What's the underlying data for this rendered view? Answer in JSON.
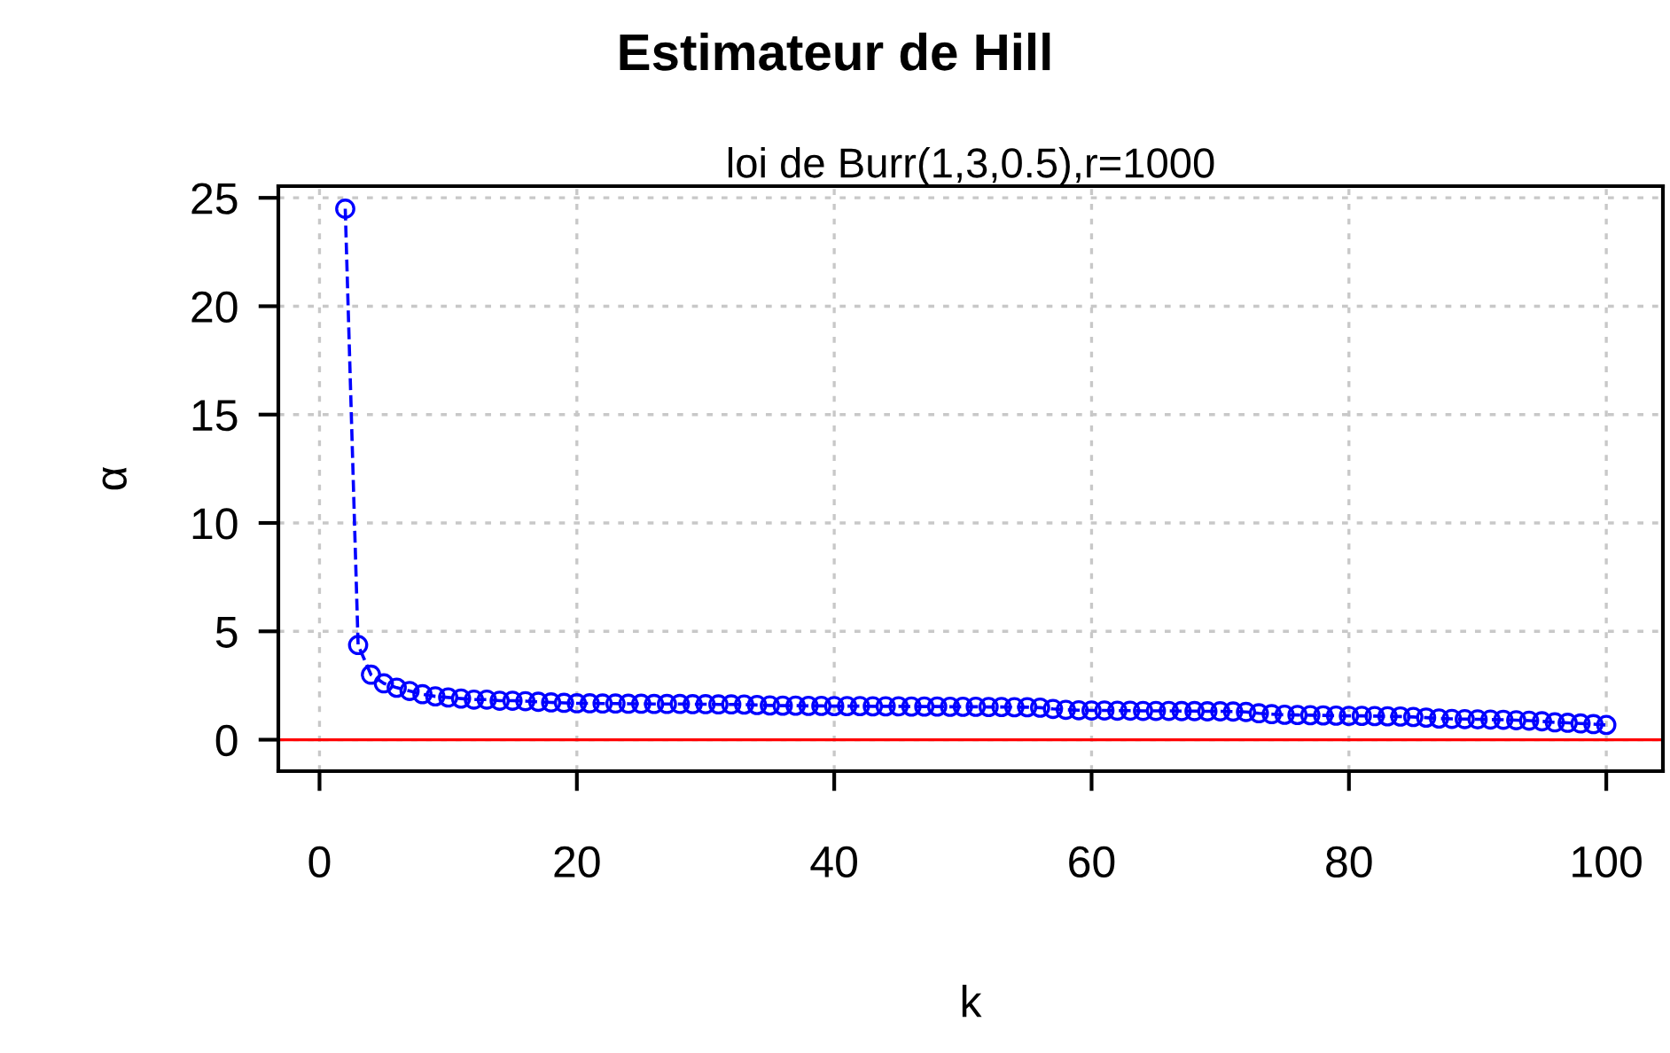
{
  "chart_data": {
    "type": "line",
    "title": "Estimateur de Hill",
    "subtitle": "loi de Burr(1,3,0.5),r=1000",
    "xlabel": "k",
    "ylabel": "α",
    "x": [
      2,
      3,
      4,
      5,
      6,
      7,
      8,
      9,
      10,
      11,
      12,
      13,
      14,
      15,
      16,
      17,
      18,
      19,
      20,
      21,
      22,
      23,
      24,
      25,
      26,
      27,
      28,
      29,
      30,
      31,
      32,
      33,
      34,
      35,
      36,
      37,
      38,
      39,
      40,
      41,
      42,
      43,
      44,
      45,
      46,
      47,
      48,
      49,
      50,
      51,
      52,
      53,
      54,
      55,
      56,
      57,
      58,
      59,
      60,
      61,
      62,
      63,
      64,
      65,
      66,
      67,
      68,
      69,
      70,
      71,
      72,
      73,
      74,
      75,
      76,
      77,
      78,
      79,
      80,
      81,
      82,
      83,
      84,
      85,
      86,
      87,
      88,
      89,
      90,
      91,
      92,
      93,
      94,
      95,
      96,
      97,
      98,
      99,
      100
    ],
    "series": [
      {
        "color": "#0000ff",
        "values": [
          24.5,
          4.37,
          3.0,
          2.6,
          2.4,
          2.25,
          2.1,
          2.0,
          1.95,
          1.9,
          1.85,
          1.85,
          1.8,
          1.8,
          1.78,
          1.75,
          1.72,
          1.7,
          1.68,
          1.68,
          1.67,
          1.67,
          1.66,
          1.66,
          1.65,
          1.65,
          1.65,
          1.64,
          1.64,
          1.63,
          1.63,
          1.62,
          1.6,
          1.58,
          1.57,
          1.57,
          1.56,
          1.56,
          1.55,
          1.55,
          1.55,
          1.54,
          1.54,
          1.54,
          1.53,
          1.53,
          1.53,
          1.52,
          1.52,
          1.52,
          1.51,
          1.51,
          1.5,
          1.5,
          1.48,
          1.42,
          1.38,
          1.36,
          1.35,
          1.35,
          1.34,
          1.34,
          1.33,
          1.33,
          1.33,
          1.32,
          1.32,
          1.31,
          1.31,
          1.3,
          1.28,
          1.22,
          1.18,
          1.15,
          1.14,
          1.13,
          1.12,
          1.11,
          1.1,
          1.1,
          1.09,
          1.08,
          1.07,
          1.05,
          1.02,
          0.98,
          0.96,
          0.95,
          0.94,
          0.93,
          0.92,
          0.9,
          0.88,
          0.85,
          0.8,
          0.78,
          0.75,
          0.72,
          0.68
        ]
      }
    ],
    "xlim": [
      -3.2,
      104.4
    ],
    "ylim": [
      -1.45,
      25.54
    ],
    "xticks": [
      0,
      20,
      40,
      60,
      80,
      100
    ],
    "yticks": [
      0,
      5,
      10,
      15,
      20,
      25
    ],
    "ref_lines": [
      {
        "axis": "y",
        "value": 0,
        "color": "#ff0000"
      }
    ],
    "grid": true,
    "marker": "circle",
    "line_style": "dashed",
    "legend": false
  }
}
